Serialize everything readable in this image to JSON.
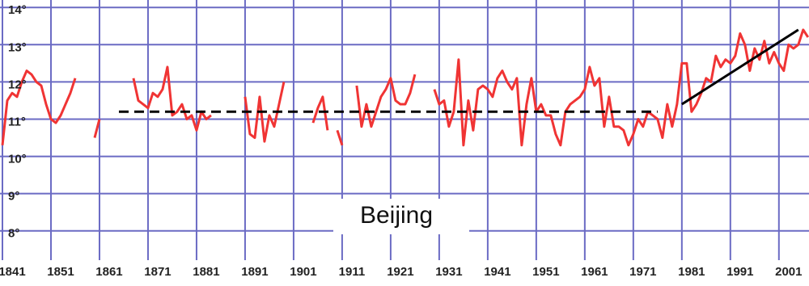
{
  "chart_data": {
    "type": "line",
    "annotation": "Beijing",
    "x": [
      1841,
      1842,
      1843,
      1844,
      1845,
      1846,
      1847,
      1848,
      1849,
      1850,
      1851,
      1852,
      1853,
      1854,
      1855,
      1856,
      1857,
      1858,
      1859,
      1860,
      1861,
      1862,
      1863,
      1864,
      1865,
      1866,
      1867,
      1868,
      1869,
      1870,
      1871,
      1872,
      1873,
      1874,
      1875,
      1876,
      1877,
      1878,
      1879,
      1880,
      1881,
      1882,
      1883,
      1884,
      1885,
      1886,
      1887,
      1888,
      1889,
      1890,
      1891,
      1892,
      1893,
      1894,
      1895,
      1896,
      1897,
      1898,
      1899,
      1900,
      1901,
      1902,
      1903,
      1904,
      1905,
      1906,
      1907,
      1908,
      1909,
      1910,
      1911,
      1912,
      1913,
      1914,
      1915,
      1916,
      1917,
      1918,
      1919,
      1920,
      1921,
      1922,
      1923,
      1924,
      1925,
      1926,
      1927,
      1928,
      1929,
      1930,
      1931,
      1932,
      1933,
      1934,
      1935,
      1936,
      1937,
      1938,
      1939,
      1940,
      1941,
      1942,
      1943,
      1944,
      1945,
      1946,
      1947,
      1948,
      1949,
      1950,
      1951,
      1952,
      1953,
      1954,
      1955,
      1956,
      1957,
      1958,
      1959,
      1960,
      1961,
      1962,
      1963,
      1964,
      1965,
      1966,
      1967,
      1968,
      1969,
      1970,
      1971,
      1972,
      1973,
      1974,
      1975,
      1976,
      1977,
      1978,
      1979,
      1980,
      1981,
      1982,
      1983,
      1984,
      1985,
      1986,
      1987,
      1988,
      1989,
      1990,
      1991,
      1992,
      1993,
      1994,
      1995,
      1996,
      1997,
      1998,
      1999,
      2000,
      2001,
      2002,
      2003,
      2004,
      2005,
      2006,
      2007
    ],
    "series": [
      {
        "color": "#f03434",
        "values": [
          10.3,
          11.5,
          11.7,
          11.6,
          12.0,
          12.3,
          12.2,
          12.0,
          11.9,
          11.4,
          11.0,
          10.9,
          11.1,
          11.4,
          11.7,
          12.1,
          null,
          null,
          null,
          10.5,
          11.0,
          null,
          null,
          null,
          null,
          null,
          null,
          12.1,
          11.5,
          11.4,
          11.3,
          11.7,
          11.6,
          11.8,
          12.4,
          11.1,
          11.2,
          11.4,
          11.0,
          11.1,
          10.7,
          11.2,
          11.0,
          11.1,
          null,
          null,
          null,
          null,
          null,
          null,
          11.6,
          10.6,
          10.5,
          11.6,
          10.4,
          11.1,
          10.8,
          11.4,
          12.0,
          null,
          null,
          null,
          null,
          null,
          10.9,
          11.3,
          11.6,
          10.7,
          null,
          10.7,
          10.3,
          null,
          null,
          11.9,
          10.8,
          11.4,
          10.8,
          11.2,
          11.6,
          11.8,
          12.1,
          11.5,
          11.4,
          11.4,
          11.7,
          12.2,
          null,
          null,
          null,
          11.8,
          11.4,
          11.5,
          10.8,
          11.2,
          12.6,
          10.3,
          11.5,
          10.7,
          11.8,
          11.9,
          11.8,
          11.6,
          12.1,
          12.3,
          12.0,
          11.8,
          12.1,
          10.3,
          11.4,
          12.1,
          11.2,
          11.4,
          11.1,
          11.1,
          10.6,
          10.3,
          11.2,
          11.4,
          11.5,
          11.6,
          11.8,
          12.4,
          11.9,
          12.1,
          10.8,
          11.6,
          10.8,
          10.8,
          10.7,
          10.3,
          10.6,
          11.0,
          10.8,
          11.2,
          11.1,
          11.0,
          10.5,
          11.4,
          10.8,
          11.4,
          12.5,
          12.5,
          11.2,
          11.4,
          11.7,
          12.1,
          12.0,
          12.7,
          12.4,
          12.6,
          12.5,
          12.7,
          13.3,
          13.0,
          12.3,
          12.9,
          12.6,
          13.1,
          12.5,
          12.8,
          12.5,
          12.3,
          13.0,
          12.9,
          13.0,
          13.4,
          13.2
        ]
      }
    ],
    "reference_lines": [
      {
        "style": "dashed",
        "color": "#000000",
        "x": [
          1865,
          1976
        ],
        "y": [
          11.2,
          11.2
        ]
      },
      {
        "style": "solid",
        "color": "#000000",
        "x": [
          1981,
          2005
        ],
        "y": [
          11.4,
          13.4
        ]
      }
    ],
    "xlim": [
      1840.5,
      2007.2
    ],
    "xticks": [
      1841,
      1851,
      1861,
      1871,
      1881,
      1891,
      1901,
      1911,
      1921,
      1931,
      1941,
      1951,
      1961,
      1971,
      1981,
      1991,
      2001
    ],
    "ylim": [
      7.3,
      14.2
    ],
    "yticks": [
      {
        "value": 8,
        "label": "8°"
      },
      {
        "value": 9,
        "label": "9°"
      },
      {
        "value": 10,
        "label": "10°"
      },
      {
        "value": 11,
        "label": "11°"
      },
      {
        "value": 12,
        "label": "12°"
      },
      {
        "value": 13,
        "label": "13°"
      },
      {
        "value": 14,
        "label": "14°"
      }
    ],
    "grid": true,
    "grid_color": "#6b6bc4"
  }
}
